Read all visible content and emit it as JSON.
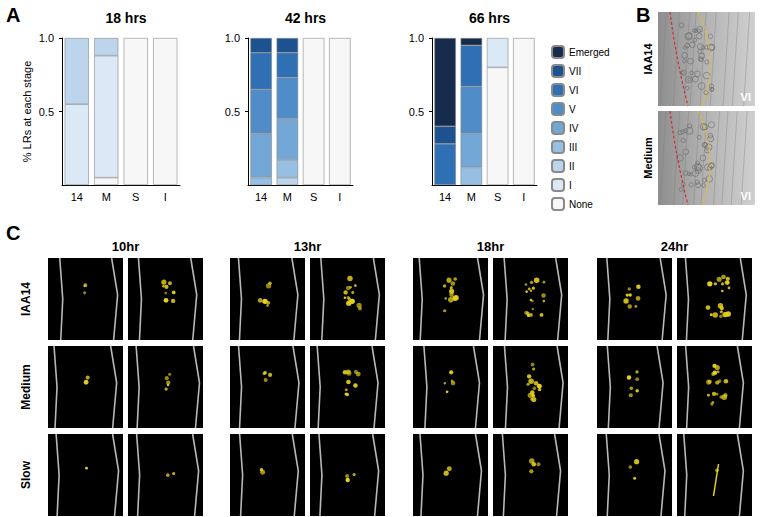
{
  "panel_labels": [
    "A",
    "B",
    "C"
  ],
  "chart_data": [
    {
      "type": "bar",
      "title": "18 hrs",
      "ylabel": "% LRs at each stage",
      "stacked": true,
      "grid": false,
      "categories": [
        "14",
        "M",
        "S",
        "I"
      ],
      "ylim": [
        0,
        1
      ],
      "yticks": [
        0.5,
        {
          "value": 1,
          "label": "1.0"
        }
      ],
      "series": [
        {
          "name": "None",
          "color": "#f7f7f7",
          "values": [
            0,
            0.05,
            1,
            1
          ]
        },
        {
          "name": "I",
          "color": "#dbe8f5",
          "values": [
            0.55,
            0.83,
            0,
            0
          ]
        },
        {
          "name": "II",
          "color": "#bcd5ed",
          "values": [
            0.45,
            0.12,
            0,
            0
          ]
        },
        {
          "name": "III",
          "color": "#96bfe3",
          "values": [
            0,
            0,
            0,
            0
          ]
        },
        {
          "name": "IV",
          "color": "#72a7d6",
          "values": [
            0,
            0,
            0,
            0
          ]
        },
        {
          "name": "V",
          "color": "#4f8cc8",
          "values": [
            0,
            0,
            0,
            0
          ]
        },
        {
          "name": "VI",
          "color": "#2f6fb3",
          "values": [
            0,
            0,
            0,
            0
          ]
        },
        {
          "name": "VII",
          "color": "#1d5290",
          "values": [
            0,
            0,
            0,
            0
          ]
        },
        {
          "name": "Emerged",
          "color": "#172b4d",
          "values": [
            0,
            0,
            0,
            0
          ]
        }
      ]
    },
    {
      "type": "bar",
      "title": "42 hrs",
      "stacked": true,
      "grid": false,
      "categories": [
        "14",
        "M",
        "S",
        "I"
      ],
      "ylim": [
        0,
        1
      ],
      "yticks": [
        0.5,
        {
          "value": 1,
          "label": "1.0"
        }
      ],
      "series": [
        {
          "name": "None",
          "color": "#f7f7f7",
          "values": [
            0,
            0,
            1,
            1
          ]
        },
        {
          "name": "I",
          "color": "#dbe8f5",
          "values": [
            0,
            0,
            0,
            0
          ]
        },
        {
          "name": "II",
          "color": "#bcd5ed",
          "values": [
            0,
            0.05,
            0,
            0
          ]
        },
        {
          "name": "III",
          "color": "#96bfe3",
          "values": [
            0.05,
            0.12,
            0,
            0
          ]
        },
        {
          "name": "IV",
          "color": "#72a7d6",
          "values": [
            0.3,
            0.28,
            0,
            0
          ]
        },
        {
          "name": "V",
          "color": "#4f8cc8",
          "values": [
            0.3,
            0.28,
            0,
            0
          ]
        },
        {
          "name": "VI",
          "color": "#2f6fb3",
          "values": [
            0.25,
            0.17,
            0,
            0
          ]
        },
        {
          "name": "VII",
          "color": "#1d5290",
          "values": [
            0.1,
            0.1,
            0,
            0
          ]
        },
        {
          "name": "Emerged",
          "color": "#172b4d",
          "values": [
            0,
            0,
            0,
            0
          ]
        }
      ]
    },
    {
      "type": "bar",
      "title": "66 hrs",
      "stacked": true,
      "grid": false,
      "legend": "right",
      "categories": [
        "14",
        "M",
        "S",
        "I"
      ],
      "ylim": [
        0,
        1
      ],
      "yticks": [
        0.5,
        {
          "value": 1,
          "label": "1.0"
        }
      ],
      "series": [
        {
          "name": "None",
          "color": "#f7f7f7",
          "values": [
            0,
            0,
            0.8,
            1
          ]
        },
        {
          "name": "I",
          "color": "#dbe8f5",
          "values": [
            0,
            0,
            0.2,
            0
          ]
        },
        {
          "name": "II",
          "color": "#bcd5ed",
          "values": [
            0,
            0,
            0,
            0
          ]
        },
        {
          "name": "III",
          "color": "#96bfe3",
          "values": [
            0,
            0.12,
            0,
            0
          ]
        },
        {
          "name": "IV",
          "color": "#72a7d6",
          "values": [
            0,
            0.23,
            0,
            0
          ]
        },
        {
          "name": "V",
          "color": "#4f8cc8",
          "values": [
            0,
            0.32,
            0,
            0
          ]
        },
        {
          "name": "VI",
          "color": "#2f6fb3",
          "values": [
            0.28,
            0.28,
            0,
            0
          ]
        },
        {
          "name": "VII",
          "color": "#1d5290",
          "values": [
            0.12,
            0,
            0,
            0
          ]
        },
        {
          "name": "Emerged",
          "color": "#172b4d",
          "values": [
            0.6,
            0.05,
            0,
            0
          ]
        }
      ]
    }
  ],
  "panel_b": {
    "rows": [
      {
        "label": "IAA14",
        "stage": "VI"
      },
      {
        "label": "Medium",
        "stage": "VI"
      }
    ]
  },
  "panel_c": {
    "columns": [
      "10hr",
      "13hr",
      "18hr",
      "24hr"
    ],
    "rows": [
      "IAA14",
      "Medium",
      "Slow"
    ]
  }
}
